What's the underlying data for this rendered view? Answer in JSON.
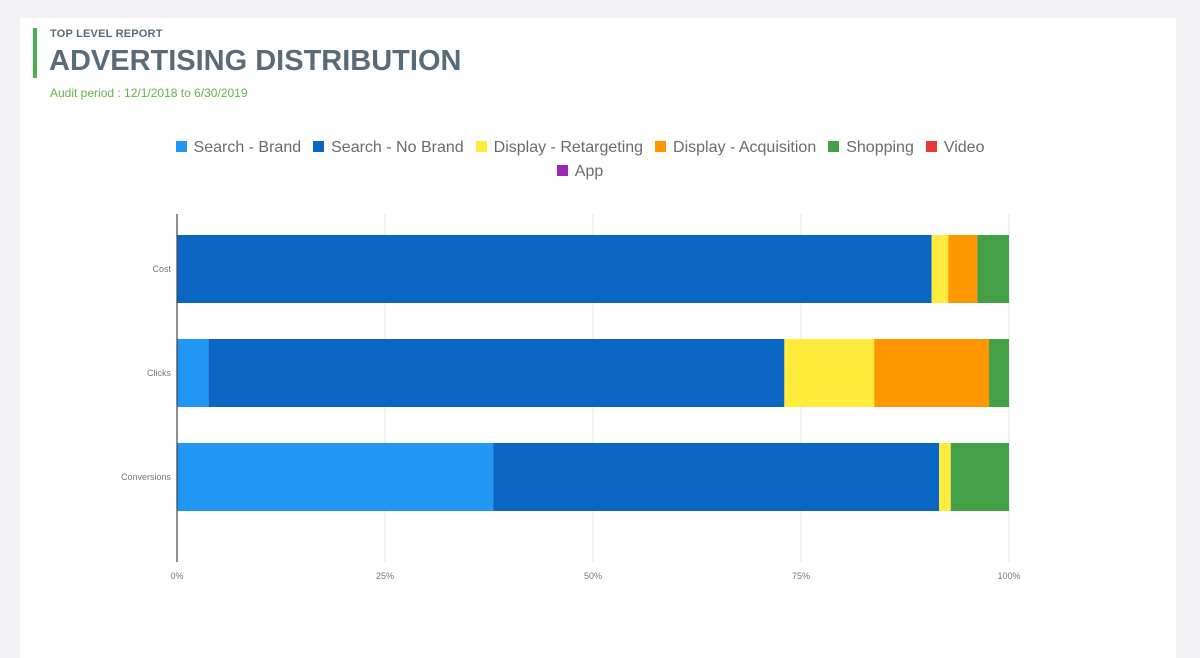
{
  "header": {
    "eyebrow": "TOP LEVEL REPORT",
    "title": "ADVERTISING DISTRIBUTION",
    "period": "Audit period : 12/1/2018 to 6/30/2019"
  },
  "chart_data": {
    "type": "bar",
    "orientation": "horizontal",
    "stacked": "percent",
    "categories": [
      "Cost",
      "Clicks",
      "Conversions"
    ],
    "series": [
      {
        "name": "Search - Brand",
        "color": "#2196f3",
        "values": [
          0,
          3.8,
          38
        ]
      },
      {
        "name": "Search - No Brand",
        "color": "#0a66c2",
        "values": [
          90.7,
          69.2,
          53.6
        ]
      },
      {
        "name": "Display - Retargeting",
        "color": "#ffeb3b",
        "values": [
          2,
          10.8,
          1.4
        ]
      },
      {
        "name": "Display - Acquisition",
        "color": "#ff9800",
        "values": [
          3.5,
          13.8,
          0
        ]
      },
      {
        "name": "Shopping",
        "color": "#43a047",
        "values": [
          3.8,
          2.4,
          7
        ]
      },
      {
        "name": "Video",
        "color": "#e53935",
        "values": [
          0,
          0,
          0
        ]
      },
      {
        "name": "App",
        "color": "#9c27b0",
        "values": [
          0,
          0,
          0
        ]
      }
    ],
    "x_ticks": [
      "0%",
      "25%",
      "50%",
      "75%",
      "100%"
    ],
    "xlim": [
      0,
      100
    ],
    "legend_position": "top",
    "grid": true
  }
}
